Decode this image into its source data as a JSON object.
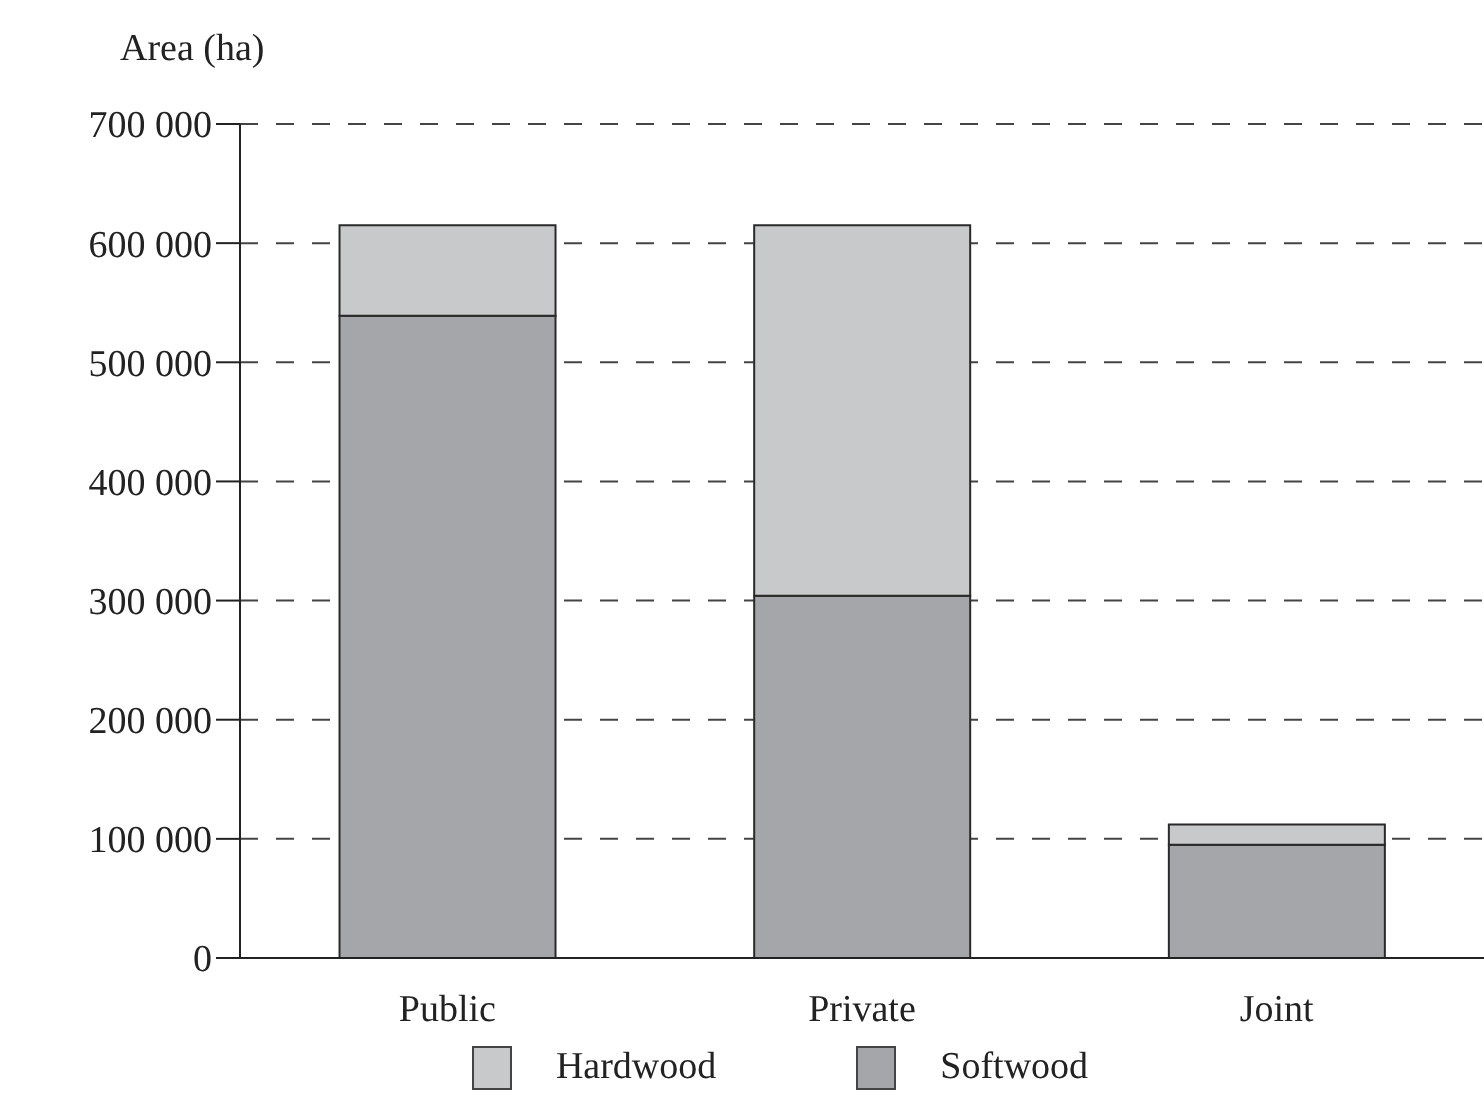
{
  "chart_data": {
    "type": "bar",
    "ylabel": "Area (ha)",
    "categories": [
      "Public",
      "Private",
      "Joint"
    ],
    "stacked": true,
    "series": [
      {
        "name": "Softwood",
        "color": "#a5a6a9",
        "values": [
          539000,
          304000,
          95000
        ]
      },
      {
        "name": "Hardwood",
        "color": "#c8c9cb",
        "values": [
          76000,
          311000,
          17000
        ]
      }
    ],
    "ylim": [
      0,
      700000
    ],
    "yticks": [
      {
        "value": 0,
        "label": "0"
      },
      {
        "value": 100000,
        "label": "100 000"
      },
      {
        "value": 200000,
        "label": "200 000"
      },
      {
        "value": 300000,
        "label": "300 000"
      },
      {
        "value": 400000,
        "label": "400 000"
      },
      {
        "value": 500000,
        "label": "500 000"
      },
      {
        "value": 600000,
        "label": "600 000"
      },
      {
        "value": 700000,
        "label": "700 000"
      }
    ],
    "grid": "y",
    "legend": "bottom"
  }
}
